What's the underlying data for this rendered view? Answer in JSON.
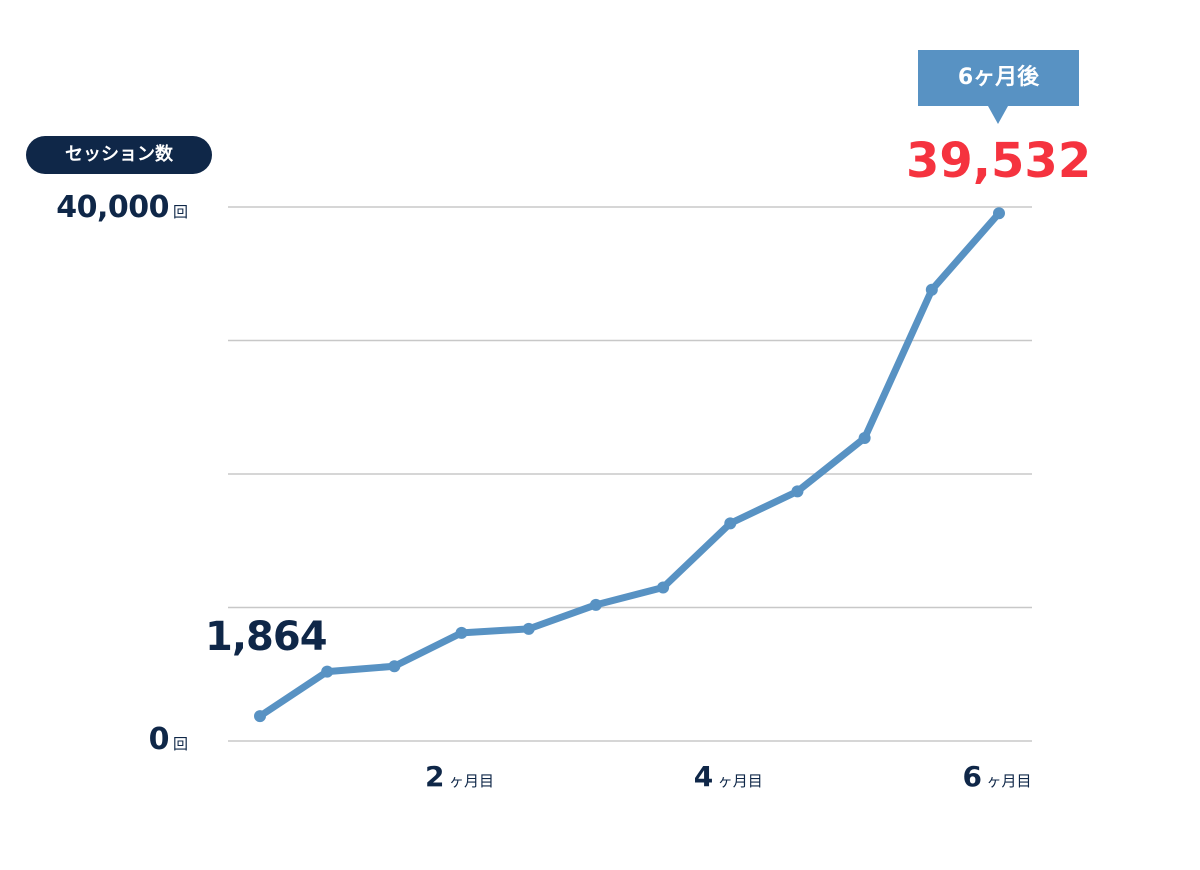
{
  "chart_data": {
    "type": "line",
    "ylabel": "セッション数",
    "ylim": [
      0,
      40000
    ],
    "y_ticks": [
      {
        "value": 40000,
        "label": "40,000",
        "unit": "回"
      },
      {
        "value": 0,
        "label": "0",
        "unit": "回"
      }
    ],
    "gridlines": [
      0,
      10000,
      20000,
      30000,
      40000
    ],
    "x": [
      0.5,
      1,
      1.5,
      2,
      2.5,
      3,
      3.5,
      4,
      4.5,
      5,
      5.5,
      6
    ],
    "x_ticks": [
      {
        "value": 2,
        "label": "2",
        "unit": "ヶ月目"
      },
      {
        "value": 4,
        "label": "4",
        "unit": "ヶ月目"
      },
      {
        "value": 6,
        "label": "6",
        "unit": "ヶ月目"
      }
    ],
    "values": [
      1864,
      5200,
      5600,
      8100,
      8400,
      10200,
      11500,
      16300,
      18700,
      22700,
      33800,
      39532
    ],
    "annotations": {
      "start_value": "1,864",
      "end_value": "39,532",
      "callout": "6ヶ月後"
    },
    "colors": {
      "line": "#5892c3",
      "axis_text": "#0f2748",
      "highlight": "#f5333f",
      "grid": "#c8c8c8"
    }
  }
}
